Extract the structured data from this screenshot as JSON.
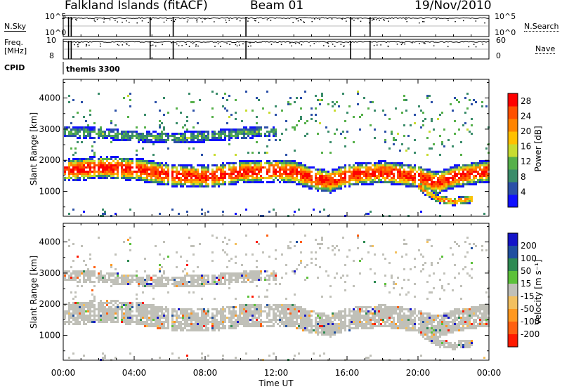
{
  "header": {
    "station": "Falkland Islands (fitACF)",
    "beam": "Beam 01",
    "date": "19/Nov/2010"
  },
  "panels": {
    "nsky": {
      "left_label": "N.Sky",
      "right_label": "N.Search",
      "left_ticks": [
        "10^5",
        "10^0"
      ],
      "right_ticks": [
        "10^5",
        "10^0"
      ]
    },
    "freq": {
      "left_label_1": "Freq.",
      "left_label_2": "[MHz]",
      "right_label": "Nave",
      "left_ticks": [
        "10",
        "8"
      ],
      "right_ticks": [
        "60",
        "0"
      ]
    },
    "cpid": {
      "label": "CPID",
      "value": "themis 3300"
    }
  },
  "colors": {
    "power_scale": [
      "#1010ff",
      "#2b50a8",
      "#3a8c6a",
      "#56b04a",
      "#c8dc30",
      "#ffc000",
      "#ff8400",
      "#ff5000",
      "#ff0000"
    ],
    "velocity_scale": [
      "#1414c8",
      "#1f4fa0",
      "#2e8a52",
      "#5cc13a",
      "#c0c0b8",
      "#f2c060",
      "#ff9820",
      "#ff6010",
      "#ff1a00"
    ]
  },
  "chart_data": [
    {
      "type": "heatmap",
      "name": "power",
      "xlabel": "",
      "ylabel": "Slant Range [km]",
      "xlim": [
        0,
        24
      ],
      "ylim": [
        200,
        4600
      ],
      "yticks": [
        1000,
        2000,
        3000,
        4000
      ],
      "colorbar": {
        "label": "Power [dB]",
        "ticks": [
          4,
          8,
          12,
          16,
          20,
          24,
          28
        ],
        "range": [
          0,
          30
        ]
      },
      "bands": [
        {
          "name": "main",
          "center": [
            [
              0,
              1700
            ],
            [
              2,
              1800
            ],
            [
              4,
              1750
            ],
            [
              6,
              1550
            ],
            [
              8,
              1500
            ],
            [
              10,
              1650
            ],
            [
              12,
              1700
            ],
            [
              13,
              1650
            ],
            [
              14,
              1450
            ],
            [
              15,
              1350
            ],
            [
              16,
              1550
            ],
            [
              18,
              1650
            ],
            [
              20,
              1500
            ],
            [
              21,
              1300
            ],
            [
              22,
              1500
            ],
            [
              24,
              1700
            ]
          ],
          "half_width": 320,
          "peak_db": 28
        },
        {
          "name": "upper",
          "center": [
            [
              0,
              2950
            ],
            [
              2,
              2900
            ],
            [
              4,
              2800
            ],
            [
              6,
              2750
            ],
            [
              8,
              2800
            ],
            [
              10,
              2900
            ],
            [
              11,
              2950
            ],
            [
              12,
              2950
            ]
          ],
          "half_width": 160,
          "peak_db": 10
        },
        {
          "name": "lower-right",
          "center": [
            [
              20,
              1200
            ],
            [
              21,
              800
            ],
            [
              22,
              700
            ],
            [
              23,
              800
            ]
          ],
          "half_width": 120,
          "peak_db": 22
        }
      ]
    },
    {
      "type": "heatmap",
      "name": "velocity",
      "xlabel": "Time UT",
      "ylabel": "Slant Range [km]",
      "xlim": [
        0,
        24
      ],
      "ylim": [
        200,
        4600
      ],
      "yticks": [
        1000,
        2000,
        3000,
        4000
      ],
      "xticks": [
        "00:00",
        "04:00",
        "08:00",
        "12:00",
        "16:00",
        "20:00",
        "00:00"
      ],
      "colorbar": {
        "label": "Velocity [m s⁻¹]",
        "ticks": [
          200,
          100,
          50,
          15,
          -15,
          -50,
          -100,
          -200
        ],
        "range": [
          -250,
          250
        ]
      },
      "dominant_value_ms": 0
    },
    {
      "type": "line",
      "name": "nsky",
      "ylim_left": [
        0,
        5
      ],
      "jumps_at_hours": [
        0.3,
        0.45,
        4.9,
        6.2,
        10.3,
        16.2,
        17.3
      ],
      "baseline": "top"
    },
    {
      "type": "line",
      "name": "frequency",
      "ylim_left": [
        8,
        10
      ],
      "ylim_right": [
        0,
        60
      ],
      "jumps_at_hours": [
        0.3,
        0.45,
        4.9,
        6.2,
        10.3,
        16.2,
        17.3
      ],
      "baseline": "top"
    }
  ]
}
